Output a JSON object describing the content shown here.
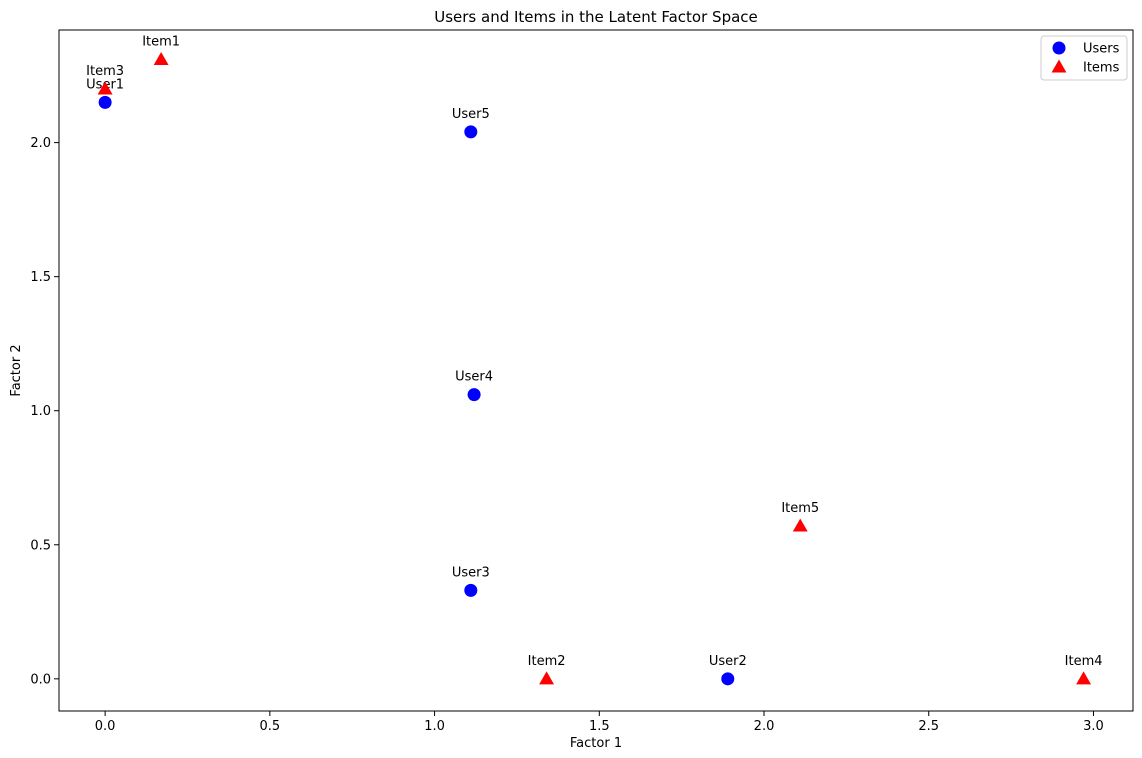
{
  "chart_data": {
    "type": "scatter",
    "title": "Users and Items in the Latent Factor Space",
    "xlabel": "Factor 1",
    "ylabel": "Factor 2",
    "xlim": [
      -0.14,
      3.12
    ],
    "ylim": [
      -0.12,
      2.42
    ],
    "xticks": [
      0.0,
      0.5,
      1.0,
      1.5,
      2.0,
      2.5,
      3.0
    ],
    "xtick_labels": [
      "0.0",
      "0.5",
      "1.0",
      "1.5",
      "2.0",
      "2.5",
      "3.0"
    ],
    "yticks": [
      0.0,
      0.5,
      1.0,
      1.5,
      2.0
    ],
    "ytick_labels": [
      "0.0",
      "0.5",
      "1.0",
      "1.5",
      "2.0"
    ],
    "grid": false,
    "legend_position": "top-right",
    "series": [
      {
        "name": "Users",
        "color": "#0000ff",
        "marker": "circle",
        "points": [
          {
            "label": "User1",
            "x": 0.0,
            "y": 2.15
          },
          {
            "label": "User2",
            "x": 1.89,
            "y": 0.0
          },
          {
            "label": "User3",
            "x": 1.11,
            "y": 0.33
          },
          {
            "label": "User4",
            "x": 1.12,
            "y": 1.06
          },
          {
            "label": "User5",
            "x": 1.11,
            "y": 2.04
          }
        ]
      },
      {
        "name": "Items",
        "color": "#ff0000",
        "marker": "triangle",
        "points": [
          {
            "label": "Item1",
            "x": 0.17,
            "y": 2.31
          },
          {
            "label": "Item2",
            "x": 1.34,
            "y": 0.0
          },
          {
            "label": "Item3",
            "x": 0.0,
            "y": 2.2
          },
          {
            "label": "Item4",
            "x": 2.97,
            "y": 0.0
          },
          {
            "label": "Item5",
            "x": 2.11,
            "y": 0.57
          }
        ]
      }
    ]
  }
}
